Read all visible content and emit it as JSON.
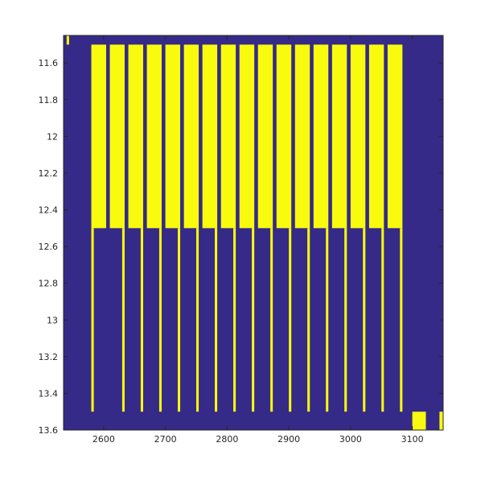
{
  "chart_data": {
    "type": "heatmap",
    "title": "",
    "xlabel": "",
    "ylabel": "",
    "xlim": [
      2535,
      3150
    ],
    "ylim": [
      11.45,
      13.6
    ],
    "y_reversed": true,
    "grid": false,
    "legend": "none",
    "colors": {
      "background": "#352a87",
      "foreground": "#f9fb0e",
      "axes": "#262626"
    },
    "x_ticks": [
      {
        "value": 2600,
        "label": "2600"
      },
      {
        "value": 2700,
        "label": "2700"
      },
      {
        "value": 2800,
        "label": "2800"
      },
      {
        "value": 2900,
        "label": "2900"
      },
      {
        "value": 3000,
        "label": "3000"
      },
      {
        "value": 3100,
        "label": "3100"
      }
    ],
    "y_ticks": [
      {
        "value": 11.6,
        "label": "11.6"
      },
      {
        "value": 11.8,
        "label": "11.8"
      },
      {
        "value": 12,
        "label": "12"
      },
      {
        "value": 12.2,
        "label": "12.2"
      },
      {
        "value": 12.4,
        "label": "12.4"
      },
      {
        "value": 12.6,
        "label": "12.6"
      },
      {
        "value": 12.8,
        "label": "12.8"
      },
      {
        "value": 13,
        "label": "13"
      },
      {
        "value": 13.2,
        "label": "13.2"
      },
      {
        "value": 13.4,
        "label": "13.4"
      },
      {
        "value": 13.6,
        "label": "13.6"
      }
    ],
    "regions": [
      {
        "x0": 2540,
        "x1": 2544,
        "y0": 11.45,
        "y1": 11.5
      },
      {
        "x0": 2580,
        "x1": 2604,
        "y0": 11.5,
        "y1": 12.5
      },
      {
        "x0": 2580,
        "x1": 2584,
        "y0": 12.5,
        "y1": 13.5
      },
      {
        "x0": 2610,
        "x1": 2634,
        "y0": 11.5,
        "y1": 12.5
      },
      {
        "x0": 2630,
        "x1": 2634,
        "y0": 12.5,
        "y1": 13.5
      },
      {
        "x0": 2640,
        "x1": 2664,
        "y0": 11.5,
        "y1": 12.5
      },
      {
        "x0": 2660,
        "x1": 2664,
        "y0": 12.5,
        "y1": 13.5
      },
      {
        "x0": 2670,
        "x1": 2694,
        "y0": 11.5,
        "y1": 12.5
      },
      {
        "x0": 2690,
        "x1": 2694,
        "y0": 12.5,
        "y1": 13.5
      },
      {
        "x0": 2700,
        "x1": 2724,
        "y0": 11.5,
        "y1": 12.5
      },
      {
        "x0": 2720,
        "x1": 2724,
        "y0": 12.5,
        "y1": 13.5
      },
      {
        "x0": 2730,
        "x1": 2754,
        "y0": 11.5,
        "y1": 12.5
      },
      {
        "x0": 2750,
        "x1": 2754,
        "y0": 12.5,
        "y1": 13.5
      },
      {
        "x0": 2760,
        "x1": 2784,
        "y0": 11.5,
        "y1": 12.5
      },
      {
        "x0": 2780,
        "x1": 2784,
        "y0": 12.5,
        "y1": 13.5
      },
      {
        "x0": 2790,
        "x1": 2814,
        "y0": 11.5,
        "y1": 12.5
      },
      {
        "x0": 2810,
        "x1": 2814,
        "y0": 12.5,
        "y1": 13.5
      },
      {
        "x0": 2820,
        "x1": 2844,
        "y0": 11.5,
        "y1": 12.5
      },
      {
        "x0": 2840,
        "x1": 2844,
        "y0": 12.5,
        "y1": 13.5
      },
      {
        "x0": 2850,
        "x1": 2874,
        "y0": 11.5,
        "y1": 12.5
      },
      {
        "x0": 2870,
        "x1": 2874,
        "y0": 12.5,
        "y1": 13.5
      },
      {
        "x0": 2880,
        "x1": 2904,
        "y0": 11.5,
        "y1": 12.5
      },
      {
        "x0": 2900,
        "x1": 2904,
        "y0": 12.5,
        "y1": 13.5
      },
      {
        "x0": 2910,
        "x1": 2934,
        "y0": 11.5,
        "y1": 12.5
      },
      {
        "x0": 2930,
        "x1": 2934,
        "y0": 12.5,
        "y1": 13.5
      },
      {
        "x0": 2940,
        "x1": 2964,
        "y0": 11.5,
        "y1": 12.5
      },
      {
        "x0": 2960,
        "x1": 2964,
        "y0": 12.5,
        "y1": 13.5
      },
      {
        "x0": 2970,
        "x1": 2994,
        "y0": 11.5,
        "y1": 12.5
      },
      {
        "x0": 2990,
        "x1": 2994,
        "y0": 12.5,
        "y1": 13.5
      },
      {
        "x0": 3000,
        "x1": 3024,
        "y0": 11.5,
        "y1": 12.5
      },
      {
        "x0": 3020,
        "x1": 3024,
        "y0": 12.5,
        "y1": 13.5
      },
      {
        "x0": 3030,
        "x1": 3054,
        "y0": 11.5,
        "y1": 12.5
      },
      {
        "x0": 3050,
        "x1": 3054,
        "y0": 12.5,
        "y1": 13.5
      },
      {
        "x0": 3060,
        "x1": 3084,
        "y0": 11.5,
        "y1": 12.5
      },
      {
        "x0": 3080,
        "x1": 3084,
        "y0": 12.5,
        "y1": 13.5
      },
      {
        "x0": 3100,
        "x1": 3122,
        "y0": 13.5,
        "y1": 13.6
      },
      {
        "x0": 3144,
        "x1": 3150,
        "y0": 13.5,
        "y1": 13.6
      }
    ]
  }
}
